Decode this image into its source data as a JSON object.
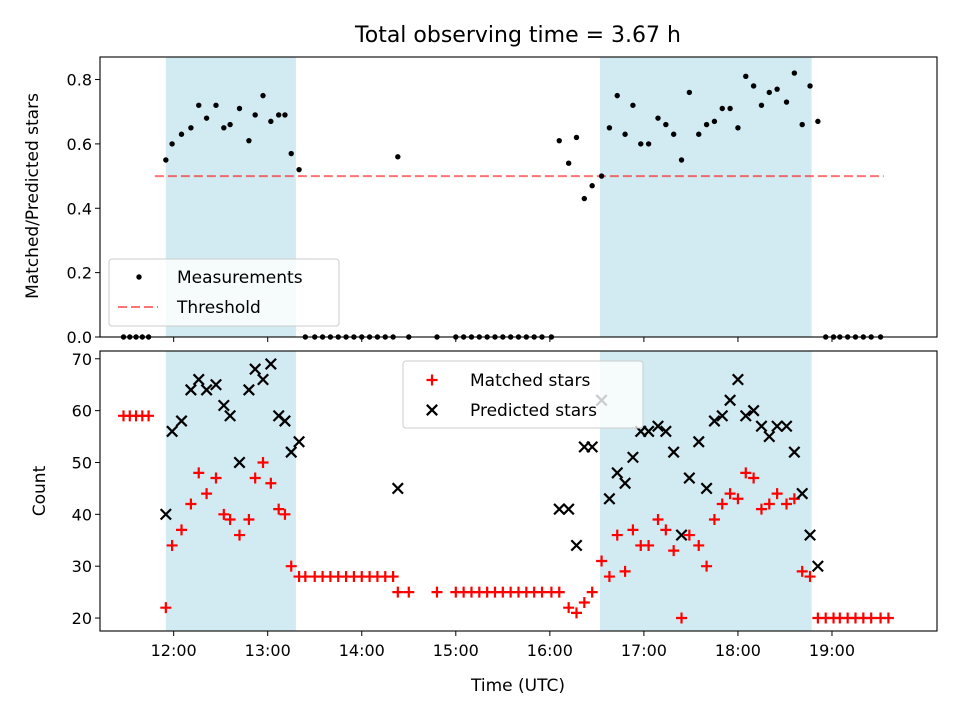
{
  "title": "Total observing time = 3.67 h",
  "colors": {
    "shade": "#add8e6",
    "measurement": "#000000",
    "threshold": "#ff0000",
    "matched": "#ff0000",
    "predicted": "#000000"
  },
  "chart_data": [
    {
      "type": "scatter",
      "ylabel": "Matched/Predicted stars",
      "ylim": [
        0,
        0.87
      ],
      "xlim": [
        "11:13",
        "20:07"
      ],
      "yticks": [
        0.0,
        0.2,
        0.4,
        0.6,
        0.8
      ],
      "ytick_labels": [
        "0.0",
        "0.2",
        "0.4",
        "0.6",
        "0.8"
      ],
      "shaded_spans": [
        [
          "11:55",
          "13:18"
        ],
        [
          "16:32",
          "18:47"
        ]
      ],
      "legend": {
        "placement": "lower left",
        "entries": [
          "Measurements",
          "Threshold"
        ]
      },
      "threshold": {
        "name": "Threshold",
        "y": 0.5,
        "x": [
          "11:48",
          "19:33"
        ]
      },
      "series": [
        {
          "name": "Measurements",
          "marker": "dot",
          "points": [
            [
              "11:28",
              0
            ],
            [
              "11:32",
              0
            ],
            [
              "11:36",
              0
            ],
            [
              "11:40",
              0
            ],
            [
              "11:44",
              0
            ],
            [
              "11:55",
              0.55
            ],
            [
              "11:59",
              0.6
            ],
            [
              "12:05",
              0.63
            ],
            [
              "12:11",
              0.65
            ],
            [
              "12:16",
              0.72
            ],
            [
              "12:21",
              0.68
            ],
            [
              "12:27",
              0.72
            ],
            [
              "12:32",
              0.65
            ],
            [
              "12:36",
              0.66
            ],
            [
              "12:42",
              0.71
            ],
            [
              "12:48",
              0.61
            ],
            [
              "12:52",
              0.69
            ],
            [
              "12:57",
              0.75
            ],
            [
              "13:02",
              0.67
            ],
            [
              "13:07",
              0.69
            ],
            [
              "13:11",
              0.69
            ],
            [
              "13:15",
              0.57
            ],
            [
              "13:20",
              0.52
            ],
            [
              "13:24",
              0
            ],
            [
              "13:30",
              0
            ],
            [
              "13:35",
              0
            ],
            [
              "13:40",
              0
            ],
            [
              "13:45",
              0
            ],
            [
              "13:50",
              0
            ],
            [
              "13:55",
              0
            ],
            [
              "14:00",
              0
            ],
            [
              "14:05",
              0
            ],
            [
              "14:10",
              0
            ],
            [
              "14:15",
              0
            ],
            [
              "14:20",
              0
            ],
            [
              "14:23",
              0.56
            ],
            [
              "14:30",
              0
            ],
            [
              "14:48",
              0
            ],
            [
              "15:00",
              0
            ],
            [
              "15:05",
              0
            ],
            [
              "15:10",
              0
            ],
            [
              "15:15",
              0
            ],
            [
              "15:20",
              0
            ],
            [
              "15:25",
              0
            ],
            [
              "15:30",
              0
            ],
            [
              "15:35",
              0
            ],
            [
              "15:40",
              0
            ],
            [
              "15:45",
              0
            ],
            [
              "15:50",
              0
            ],
            [
              "15:55",
              0
            ],
            [
              "16:01",
              0
            ],
            [
              "16:06",
              0.61
            ],
            [
              "16:12",
              0.54
            ],
            [
              "16:17",
              0.62
            ],
            [
              "16:22",
              0.43
            ],
            [
              "16:27",
              0.47
            ],
            [
              "16:33",
              0.5
            ],
            [
              "16:38",
              0.65
            ],
            [
              "16:43",
              0.75
            ],
            [
              "16:48",
              0.63
            ],
            [
              "16:53",
              0.72
            ],
            [
              "16:58",
              0.6
            ],
            [
              "17:03",
              0.6
            ],
            [
              "17:09",
              0.68
            ],
            [
              "17:14",
              0.66
            ],
            [
              "17:19",
              0.63
            ],
            [
              "17:24",
              0.55
            ],
            [
              "17:29",
              0.76
            ],
            [
              "17:35",
              0.63
            ],
            [
              "17:40",
              0.66
            ],
            [
              "17:45",
              0.67
            ],
            [
              "17:50",
              0.71
            ],
            [
              "17:55",
              0.71
            ],
            [
              "18:00",
              0.65
            ],
            [
              "18:05",
              0.81
            ],
            [
              "18:10",
              0.78
            ],
            [
              "18:15",
              0.72
            ],
            [
              "18:20",
              0.76
            ],
            [
              "18:25",
              0.77
            ],
            [
              "18:31",
              0.73
            ],
            [
              "18:36",
              0.82
            ],
            [
              "18:41",
              0.66
            ],
            [
              "18:46",
              0.78
            ],
            [
              "18:51",
              0.67
            ],
            [
              "18:56",
              0
            ],
            [
              "19:01",
              0
            ],
            [
              "19:05",
              0
            ],
            [
              "19:10",
              0
            ],
            [
              "19:15",
              0
            ],
            [
              "19:20",
              0
            ],
            [
              "19:25",
              0
            ],
            [
              "19:31",
              0
            ]
          ]
        }
      ]
    },
    {
      "type": "scatter",
      "xlabel": "Time (UTC)",
      "ylabel": "Count",
      "ylim": [
        17.5,
        71.5
      ],
      "xlim": [
        "11:13",
        "20:07"
      ],
      "yticks": [
        20,
        30,
        40,
        50,
        60,
        70
      ],
      "ytick_labels": [
        "20",
        "30",
        "40",
        "50",
        "60",
        "70"
      ],
      "xticks": [
        "12:00",
        "13:00",
        "14:00",
        "15:00",
        "16:00",
        "17:00",
        "18:00",
        "19:00"
      ],
      "shaded_spans": [
        [
          "11:55",
          "13:18"
        ],
        [
          "16:32",
          "18:47"
        ]
      ],
      "legend": {
        "placement": "upper center",
        "entries": [
          "Matched stars",
          "Predicted stars"
        ]
      },
      "series": [
        {
          "name": "Matched stars",
          "marker": "plus",
          "points": [
            [
              "11:28",
              59
            ],
            [
              "11:32",
              59
            ],
            [
              "11:36",
              59
            ],
            [
              "11:40",
              59
            ],
            [
              "11:44",
              59
            ],
            [
              "11:55",
              22
            ],
            [
              "11:59",
              34
            ],
            [
              "12:05",
              37
            ],
            [
              "12:11",
              42
            ],
            [
              "12:16",
              48
            ],
            [
              "12:21",
              44
            ],
            [
              "12:27",
              47
            ],
            [
              "12:32",
              40
            ],
            [
              "12:36",
              39
            ],
            [
              "12:42",
              36
            ],
            [
              "12:48",
              39
            ],
            [
              "12:52",
              47
            ],
            [
              "12:57",
              50
            ],
            [
              "13:02",
              46
            ],
            [
              "13:07",
              41
            ],
            [
              "13:11",
              40
            ],
            [
              "13:15",
              30
            ],
            [
              "13:20",
              28
            ],
            [
              "13:24",
              28
            ],
            [
              "13:30",
              28
            ],
            [
              "13:35",
              28
            ],
            [
              "13:40",
              28
            ],
            [
              "13:45",
              28
            ],
            [
              "13:50",
              28
            ],
            [
              "13:55",
              28
            ],
            [
              "14:00",
              28
            ],
            [
              "14:05",
              28
            ],
            [
              "14:10",
              28
            ],
            [
              "14:15",
              28
            ],
            [
              "14:20",
              28
            ],
            [
              "14:23",
              25
            ],
            [
              "14:30",
              25
            ],
            [
              "14:48",
              25
            ],
            [
              "15:00",
              25
            ],
            [
              "15:05",
              25
            ],
            [
              "15:10",
              25
            ],
            [
              "15:15",
              25
            ],
            [
              "15:20",
              25
            ],
            [
              "15:25",
              25
            ],
            [
              "15:30",
              25
            ],
            [
              "15:35",
              25
            ],
            [
              "15:40",
              25
            ],
            [
              "15:45",
              25
            ],
            [
              "15:50",
              25
            ],
            [
              "15:55",
              25
            ],
            [
              "16:01",
              25
            ],
            [
              "16:06",
              25
            ],
            [
              "16:12",
              22
            ],
            [
              "16:17",
              21
            ],
            [
              "16:22",
              23
            ],
            [
              "16:27",
              25
            ],
            [
              "16:33",
              31
            ],
            [
              "16:38",
              28
            ],
            [
              "16:43",
              36
            ],
            [
              "16:48",
              29
            ],
            [
              "16:53",
              37
            ],
            [
              "16:58",
              34
            ],
            [
              "17:03",
              34
            ],
            [
              "17:09",
              39
            ],
            [
              "17:14",
              37
            ],
            [
              "17:19",
              33
            ],
            [
              "17:24",
              20
            ],
            [
              "17:29",
              36
            ],
            [
              "17:35",
              34
            ],
            [
              "17:40",
              30
            ],
            [
              "17:45",
              39
            ],
            [
              "17:50",
              42
            ],
            [
              "17:55",
              44
            ],
            [
              "18:00",
              43
            ],
            [
              "18:05",
              48
            ],
            [
              "18:10",
              47
            ],
            [
              "18:15",
              41
            ],
            [
              "18:20",
              42
            ],
            [
              "18:25",
              44
            ],
            [
              "18:31",
              42
            ],
            [
              "18:36",
              43
            ],
            [
              "18:41",
              29
            ],
            [
              "18:46",
              28
            ],
            [
              "18:51",
              20
            ],
            [
              "18:56",
              20
            ],
            [
              "19:01",
              20
            ],
            [
              "19:05",
              20
            ],
            [
              "19:10",
              20
            ],
            [
              "19:15",
              20
            ],
            [
              "19:20",
              20
            ],
            [
              "19:25",
              20
            ],
            [
              "19:31",
              20
            ],
            [
              "19:36",
              20
            ]
          ]
        },
        {
          "name": "Predicted stars",
          "marker": "x",
          "points": [
            [
              "11:55",
              40
            ],
            [
              "11:59",
              56
            ],
            [
              "12:05",
              58
            ],
            [
              "12:11",
              64
            ],
            [
              "12:16",
              66
            ],
            [
              "12:21",
              64
            ],
            [
              "12:27",
              65
            ],
            [
              "12:32",
              61
            ],
            [
              "12:36",
              59
            ],
            [
              "12:42",
              50
            ],
            [
              "12:48",
              64
            ],
            [
              "12:52",
              68
            ],
            [
              "12:57",
              66
            ],
            [
              "13:02",
              69
            ],
            [
              "13:07",
              59
            ],
            [
              "13:11",
              58
            ],
            [
              "13:15",
              52
            ],
            [
              "13:20",
              54
            ],
            [
              "14:23",
              45
            ],
            [
              "16:06",
              41
            ],
            [
              "16:12",
              41
            ],
            [
              "16:17",
              34
            ],
            [
              "16:22",
              53
            ],
            [
              "16:27",
              53
            ],
            [
              "16:33",
              62
            ],
            [
              "16:38",
              43
            ],
            [
              "16:43",
              48
            ],
            [
              "16:48",
              46
            ],
            [
              "16:53",
              51
            ],
            [
              "16:58",
              56
            ],
            [
              "17:03",
              56
            ],
            [
              "17:09",
              57
            ],
            [
              "17:14",
              56
            ],
            [
              "17:19",
              52
            ],
            [
              "17:24",
              36
            ],
            [
              "17:29",
              47
            ],
            [
              "17:35",
              54
            ],
            [
              "17:40",
              45
            ],
            [
              "17:45",
              58
            ],
            [
              "17:50",
              59
            ],
            [
              "17:55",
              62
            ],
            [
              "18:00",
              66
            ],
            [
              "18:05",
              59
            ],
            [
              "18:10",
              60
            ],
            [
              "18:15",
              57
            ],
            [
              "18:20",
              55
            ],
            [
              "18:25",
              57
            ],
            [
              "18:31",
              57
            ],
            [
              "18:36",
              52
            ],
            [
              "18:41",
              44
            ],
            [
              "18:46",
              36
            ],
            [
              "18:51",
              30
            ]
          ]
        }
      ]
    }
  ]
}
